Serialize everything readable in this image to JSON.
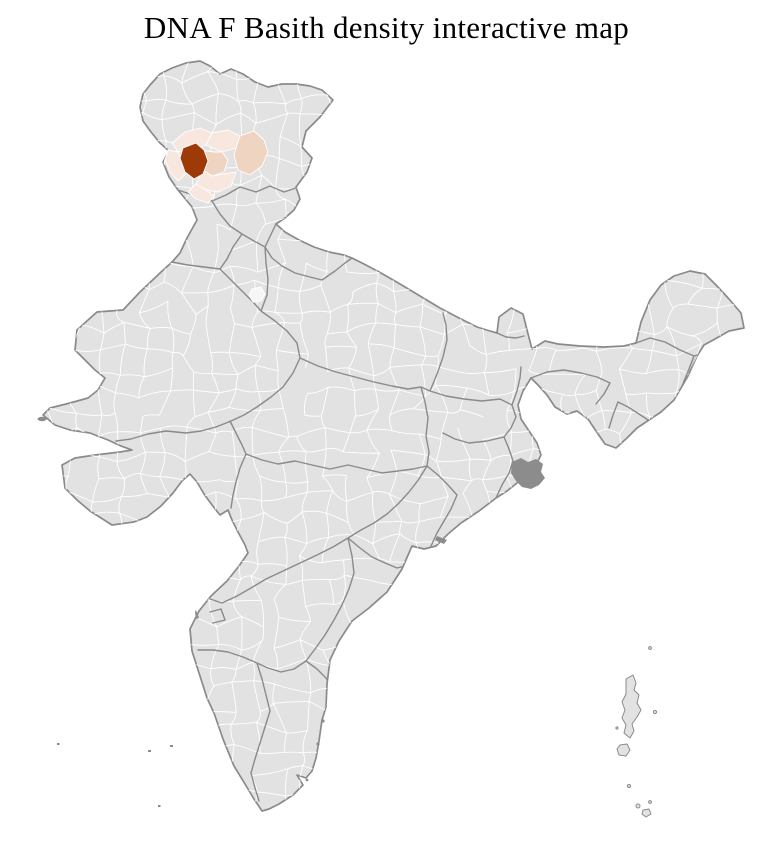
{
  "page": {
    "title": "DNA F Basith density interactive map"
  },
  "map": {
    "colors": {
      "background": "#ffffff",
      "land": "#e2e2e2",
      "district_border": "#ffffff",
      "state_border": "#8a8a8a",
      "outer_border": "#8a8a8a",
      "dark_feature": "#8c8c8c",
      "island_fill": "#e2e2e2",
      "capital_district": "#f6f6f6",
      "highlight_max": "#9e3a08",
      "highlight_mid": "#efd4c2",
      "highlight_low": "#f7e7de"
    }
  }
}
